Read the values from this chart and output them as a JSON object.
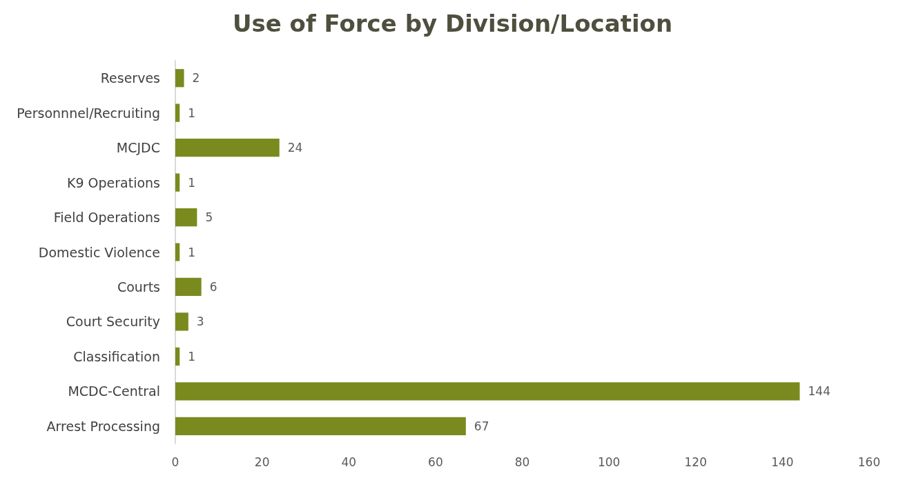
{
  "chart_data": {
    "type": "bar",
    "title": "Use of Force by Division/Location",
    "orientation": "horizontal",
    "categories": [
      "Reserves",
      "Personnnel/Recruiting",
      "MCJDC",
      "K9 Operations",
      "Field Operations",
      "Domestic Violence",
      "Courts",
      "Court Security",
      "Classification",
      "MCDC-Central",
      "Arrest Processing"
    ],
    "values": [
      2,
      1,
      24,
      1,
      5,
      1,
      6,
      3,
      1,
      144,
      67
    ],
    "color": "#7a8a1e",
    "xlim": [
      0,
      160
    ],
    "xticks": [
      0,
      20,
      40,
      60,
      80,
      100,
      120,
      140,
      160
    ],
    "data_labels": true,
    "grid": false
  }
}
